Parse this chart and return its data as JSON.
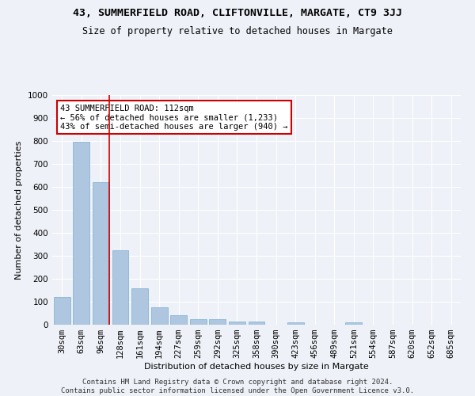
{
  "title1": "43, SUMMERFIELD ROAD, CLIFTONVILLE, MARGATE, CT9 3JJ",
  "title2": "Size of property relative to detached houses in Margate",
  "xlabel": "Distribution of detached houses by size in Margate",
  "ylabel": "Number of detached properties",
  "footer1": "Contains HM Land Registry data © Crown copyright and database right 2024.",
  "footer2": "Contains public sector information licensed under the Open Government Licence v3.0.",
  "categories": [
    "30sqm",
    "63sqm",
    "96sqm",
    "128sqm",
    "161sqm",
    "194sqm",
    "227sqm",
    "259sqm",
    "292sqm",
    "325sqm",
    "358sqm",
    "390sqm",
    "423sqm",
    "456sqm",
    "489sqm",
    "521sqm",
    "554sqm",
    "587sqm",
    "620sqm",
    "652sqm",
    "685sqm"
  ],
  "values": [
    120,
    795,
    620,
    325,
    160,
    77,
    40,
    25,
    25,
    15,
    15,
    0,
    10,
    0,
    0,
    10,
    0,
    0,
    0,
    0,
    0
  ],
  "bar_color": "#aec6df",
  "bar_edge_color": "#7aaecf",
  "red_line_index": 2,
  "annotation_text": "43 SUMMERFIELD ROAD: 112sqm\n← 56% of detached houses are smaller (1,233)\n43% of semi-detached houses are larger (940) →",
  "annotation_box_color": "#ffffff",
  "annotation_box_edge": "#cc0000",
  "ylim": [
    0,
    1000
  ],
  "yticks": [
    0,
    100,
    200,
    300,
    400,
    500,
    600,
    700,
    800,
    900,
    1000
  ],
  "background_color": "#eef2f8",
  "grid_color": "#ffffff",
  "title1_fontsize": 9.5,
  "title2_fontsize": 8.5,
  "xlabel_fontsize": 8,
  "ylabel_fontsize": 8,
  "tick_fontsize": 7.5,
  "footer_fontsize": 6.5,
  "annot_fontsize": 7.5
}
